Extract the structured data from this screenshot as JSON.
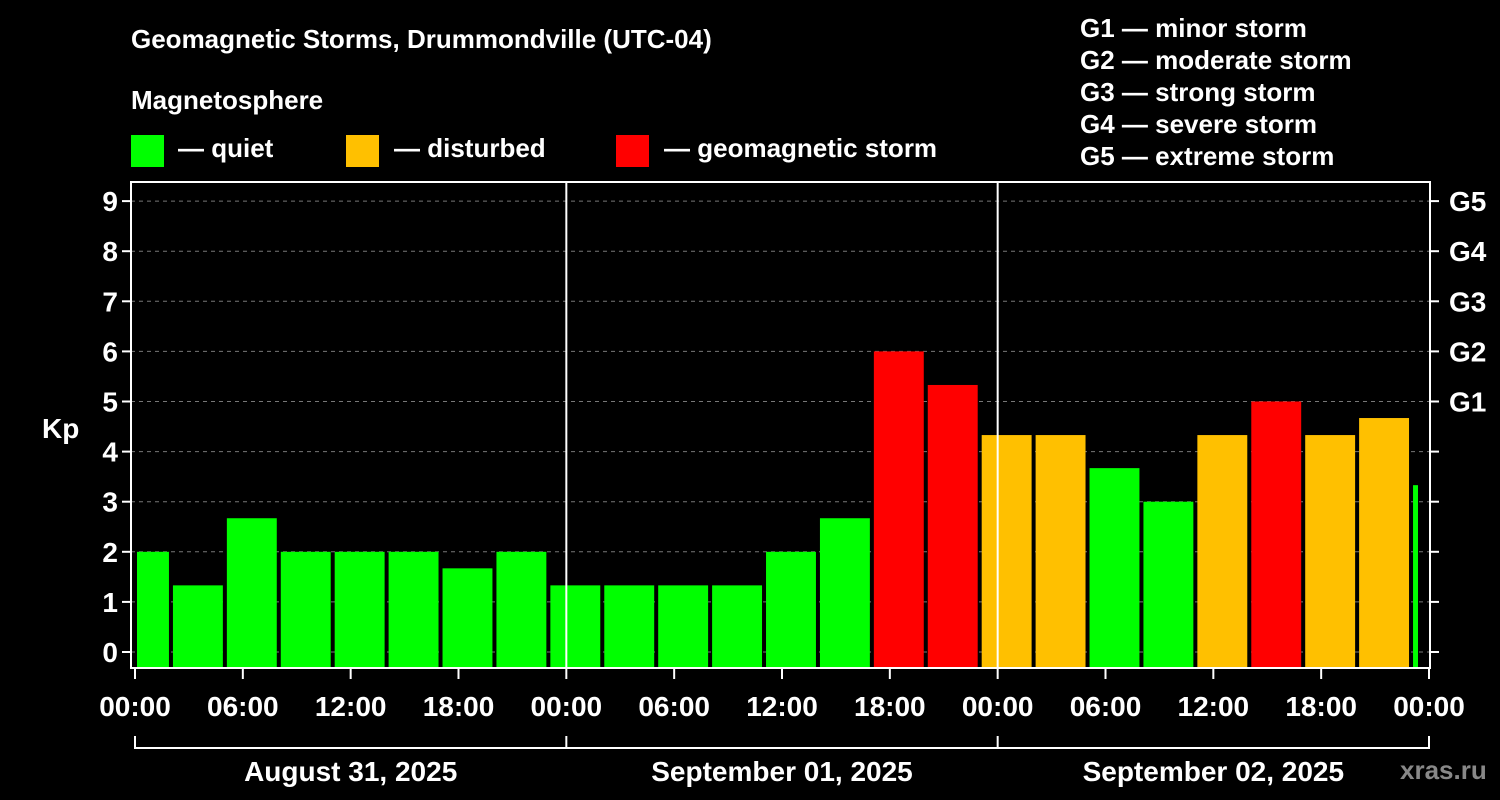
{
  "title": "Geomagnetic Storms, Drummondville (UTC-04)",
  "legend": {
    "heading": "Magnetosphere",
    "items": [
      {
        "label": "— quiet",
        "color": "#00ff00"
      },
      {
        "label": "— disturbed",
        "color": "#ffc000"
      },
      {
        "label": "— geomagnetic storm",
        "color": "#ff0000"
      }
    ]
  },
  "scale_legend": [
    "G1 — minor storm",
    "G2 — moderate storm",
    "G3 — strong storm",
    "G4 — severe storm",
    "G5 — extreme storm"
  ],
  "watermark": "xras.ru",
  "colors": {
    "quiet": "#00ff00",
    "disturbed": "#ffc000",
    "storm": "#ff0000",
    "background": "#000000",
    "foreground": "#ffffff"
  },
  "chart_data": {
    "type": "bar",
    "ylabel": "Kp",
    "ylim": [
      -0.3,
      9.4
    ],
    "yticks": [
      "0",
      "1",
      "2",
      "3",
      "4",
      "5",
      "6",
      "7",
      "8",
      "9"
    ],
    "right_ticks": [
      {
        "kp": 5,
        "label": "G1"
      },
      {
        "kp": 6,
        "label": "G2"
      },
      {
        "kp": 7,
        "label": "G3"
      },
      {
        "kp": 8,
        "label": "G4"
      },
      {
        "kp": 9,
        "label": "G5"
      }
    ],
    "grid": "dashed horizontal at each Kp level",
    "xlim_hours": [
      0,
      72
    ],
    "xticks": [
      {
        "h": 0,
        "label": "00:00"
      },
      {
        "h": 6,
        "label": "06:00"
      },
      {
        "h": 12,
        "label": "12:00"
      },
      {
        "h": 18,
        "label": "18:00"
      },
      {
        "h": 24,
        "label": "00:00"
      },
      {
        "h": 30,
        "label": "06:00"
      },
      {
        "h": 36,
        "label": "12:00"
      },
      {
        "h": 42,
        "label": "18:00"
      },
      {
        "h": 48,
        "label": "00:00"
      },
      {
        "h": 54,
        "label": "06:00"
      },
      {
        "h": 60,
        "label": "12:00"
      },
      {
        "h": 66,
        "label": "18:00"
      },
      {
        "h": 72,
        "label": "00:00"
      }
    ],
    "days": [
      {
        "label": "August 31, 2025",
        "start": 0,
        "end": 24
      },
      {
        "label": "September 01, 2025",
        "start": 24,
        "end": 48
      },
      {
        "label": "September 02, 2025",
        "start": 48,
        "end": 72
      }
    ],
    "bars": [
      {
        "start": 0,
        "end": 2,
        "kp": 2.0,
        "level": "quiet"
      },
      {
        "start": 2,
        "end": 5,
        "kp": 1.33,
        "level": "quiet"
      },
      {
        "start": 5,
        "end": 8,
        "kp": 2.67,
        "level": "quiet"
      },
      {
        "start": 8,
        "end": 11,
        "kp": 2.0,
        "level": "quiet"
      },
      {
        "start": 11,
        "end": 14,
        "kp": 2.0,
        "level": "quiet"
      },
      {
        "start": 14,
        "end": 17,
        "kp": 2.0,
        "level": "quiet"
      },
      {
        "start": 17,
        "end": 20,
        "kp": 1.67,
        "level": "quiet"
      },
      {
        "start": 20,
        "end": 23,
        "kp": 2.0,
        "level": "quiet"
      },
      {
        "start": 23,
        "end": 26,
        "kp": 1.33,
        "level": "quiet"
      },
      {
        "start": 26,
        "end": 29,
        "kp": 1.33,
        "level": "quiet"
      },
      {
        "start": 29,
        "end": 32,
        "kp": 1.33,
        "level": "quiet"
      },
      {
        "start": 32,
        "end": 35,
        "kp": 1.33,
        "level": "quiet"
      },
      {
        "start": 35,
        "end": 38,
        "kp": 2.0,
        "level": "quiet"
      },
      {
        "start": 38,
        "end": 41,
        "kp": 2.67,
        "level": "quiet"
      },
      {
        "start": 41,
        "end": 44,
        "kp": 6.0,
        "level": "storm"
      },
      {
        "start": 44,
        "end": 47,
        "kp": 5.33,
        "level": "storm"
      },
      {
        "start": 47,
        "end": 50,
        "kp": 4.33,
        "level": "disturbed"
      },
      {
        "start": 50,
        "end": 53,
        "kp": 4.33,
        "level": "disturbed"
      },
      {
        "start": 53,
        "end": 56,
        "kp": 3.67,
        "level": "quiet"
      },
      {
        "start": 56,
        "end": 59,
        "kp": 3.0,
        "level": "quiet"
      },
      {
        "start": 59,
        "end": 62,
        "kp": 4.33,
        "level": "disturbed"
      },
      {
        "start": 62,
        "end": 65,
        "kp": 5.0,
        "level": "storm"
      },
      {
        "start": 65,
        "end": 68,
        "kp": 4.33,
        "level": "disturbed"
      },
      {
        "start": 68,
        "end": 71,
        "kp": 4.67,
        "level": "disturbed"
      },
      {
        "start": 71,
        "end": 72,
        "kp": 3.33,
        "level": "quiet"
      }
    ]
  }
}
